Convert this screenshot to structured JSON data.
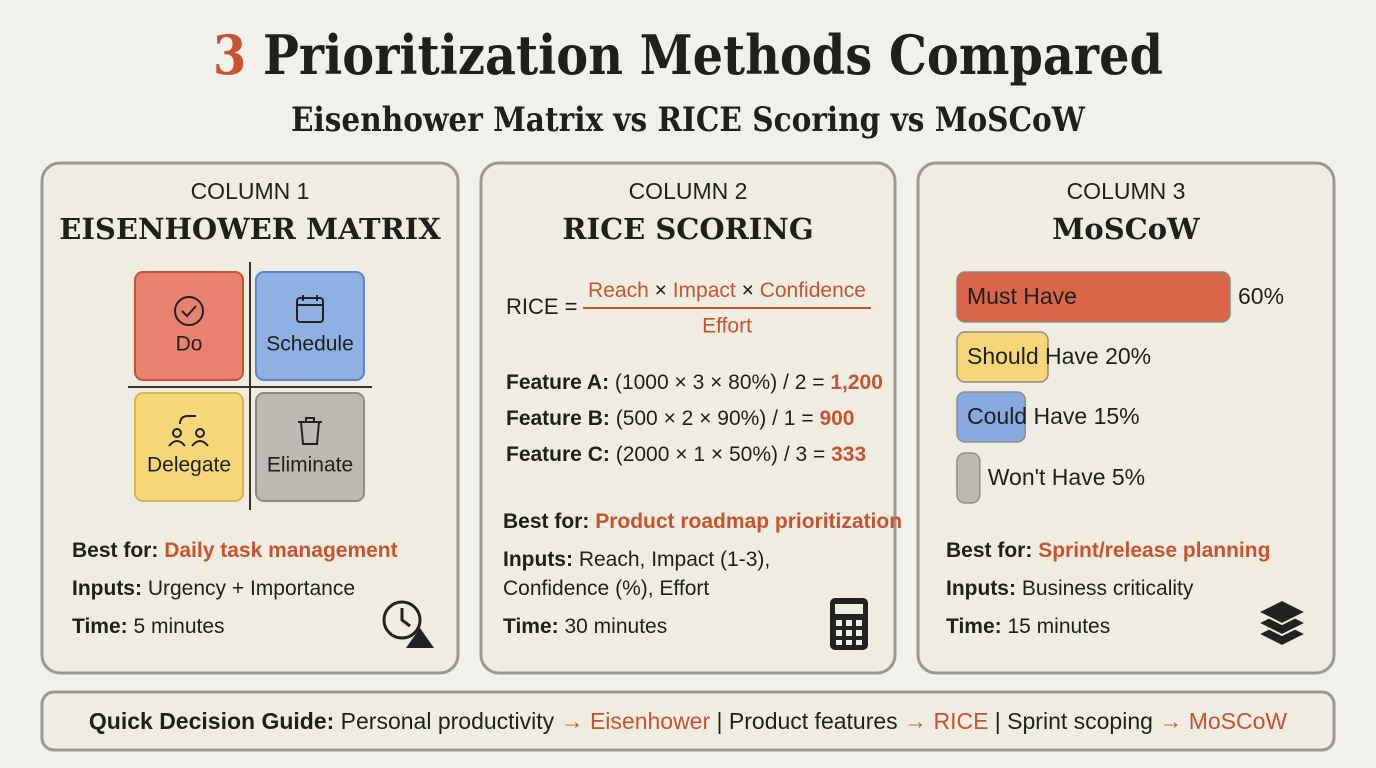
{
  "header": {
    "number": "3",
    "title": "Prioritization Methods Compared",
    "subtitle": "Eisenhower Matrix vs RICE Scoring vs MoSCoW"
  },
  "columns": [
    {
      "label": "COLUMN 1",
      "name": "EISENHOWER MATRIX",
      "quadrants": [
        "Do",
        "Schedule",
        "Delegate",
        "Eliminate"
      ],
      "best_for_label": "Best for:",
      "best_for": "Daily task management",
      "inputs_label": "Inputs:",
      "inputs": [
        "Urgency + Importance"
      ],
      "time_label": "Time:",
      "time": "5 minutes"
    },
    {
      "label": "COLUMN 2",
      "name": "RICE SCORING",
      "formula": {
        "lhs": "RICE =",
        "numerator": [
          "Reach",
          "Impact",
          "Confidence"
        ],
        "operator": "×",
        "denominator": "Effort"
      },
      "examples": [
        {
          "name": "Feature A:",
          "calc": "(1000 × 3 × 80%) / 2 =",
          "result": "1,200"
        },
        {
          "name": "Feature B:",
          "calc": "(500 × 2 × 90%) / 1 =",
          "result": "900"
        },
        {
          "name": "Feature C:",
          "calc": "(2000 × 1 × 50%) / 3 =",
          "result": "333"
        }
      ],
      "best_for_label": "Best for:",
      "best_for": "Product roadmap prioritization",
      "inputs_label": "Inputs:",
      "inputs": [
        "Reach, Impact (1-3),",
        "Confidence (%), Effort"
      ],
      "time_label": "Time:",
      "time": "30 minutes"
    },
    {
      "label": "COLUMN 3",
      "name": "MoSCoW",
      "priorities": [
        {
          "label": "Must Have",
          "value": 60,
          "value_label": "60%",
          "color": "#d9654a"
        },
        {
          "label": "Should Have",
          "value": 20,
          "value_label": "20%",
          "color": "#f5d77a"
        },
        {
          "label": "Could Have",
          "value": 15,
          "value_label": "15%",
          "color": "#86a9e0"
        },
        {
          "label": "Won't Have",
          "value": 5,
          "value_label": "5%",
          "color": "#bdb9b2"
        }
      ],
      "best_for_label": "Best for:",
      "best_for": "Sprint/release planning",
      "inputs_label": "Inputs:",
      "inputs": [
        "Business criticality"
      ],
      "time_label": "Time:",
      "time": "15 minutes"
    }
  ],
  "footer": {
    "label": "Quick Decision Guide:",
    "arrow": "→",
    "separator": "|",
    "items": [
      {
        "context": "Personal productivity",
        "method": "Eisenhower"
      },
      {
        "context": "Product features",
        "method": "RICE"
      },
      {
        "context": "Sprint scoping",
        "method": "MoSCoW"
      }
    ]
  }
}
